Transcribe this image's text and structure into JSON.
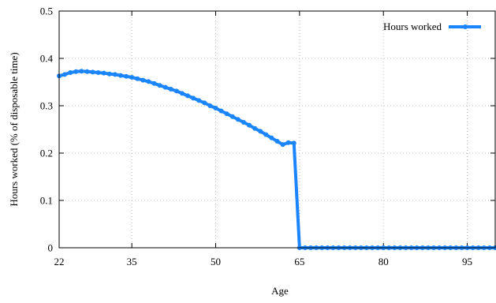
{
  "chart_data": {
    "type": "line",
    "title": "",
    "xlabel": "Age",
    "ylabel": "Hours worked (% of disposable time)",
    "xlim": [
      22,
      100
    ],
    "ylim": [
      0,
      0.5
    ],
    "xticks": [
      22,
      35,
      50,
      65,
      80,
      95
    ],
    "yticks": [
      0,
      0.1,
      0.2,
      0.3,
      0.4,
      0.5
    ],
    "ytick_labels": [
      "0",
      "0.1",
      "0.2",
      "0.3",
      "0.4",
      "0.5"
    ],
    "grid": true,
    "legend_position": "top-right",
    "series": [
      {
        "name": "Hours worked",
        "color": "#1a85ff",
        "x": [
          22,
          23,
          24,
          25,
          26,
          27,
          28,
          29,
          30,
          31,
          32,
          33,
          34,
          35,
          36,
          37,
          38,
          39,
          40,
          41,
          42,
          43,
          44,
          45,
          46,
          47,
          48,
          49,
          50,
          51,
          52,
          53,
          54,
          55,
          56,
          57,
          58,
          59,
          60,
          61,
          62,
          63,
          64,
          65,
          66,
          67,
          68,
          69,
          70,
          71,
          72,
          73,
          74,
          75,
          76,
          77,
          78,
          79,
          80,
          81,
          82,
          83,
          84,
          85,
          86,
          87,
          88,
          89,
          90,
          91,
          92,
          93,
          94,
          95,
          96,
          97,
          98,
          99,
          100
        ],
        "y": [
          0.363,
          0.366,
          0.37,
          0.372,
          0.373,
          0.372,
          0.371,
          0.37,
          0.369,
          0.367,
          0.366,
          0.364,
          0.362,
          0.36,
          0.357,
          0.354,
          0.351,
          0.347,
          0.343,
          0.339,
          0.335,
          0.331,
          0.326,
          0.321,
          0.316,
          0.311,
          0.306,
          0.3,
          0.295,
          0.289,
          0.283,
          0.277,
          0.271,
          0.265,
          0.259,
          0.252,
          0.246,
          0.239,
          0.232,
          0.225,
          0.218,
          0.222,
          0.221,
          0,
          0,
          0,
          0,
          0,
          0,
          0,
          0,
          0,
          0,
          0,
          0,
          0,
          0,
          0,
          0,
          0,
          0,
          0,
          0,
          0,
          0,
          0,
          0,
          0,
          0,
          0,
          0,
          0,
          0,
          0,
          0,
          0,
          0,
          0,
          0
        ]
      }
    ]
  }
}
